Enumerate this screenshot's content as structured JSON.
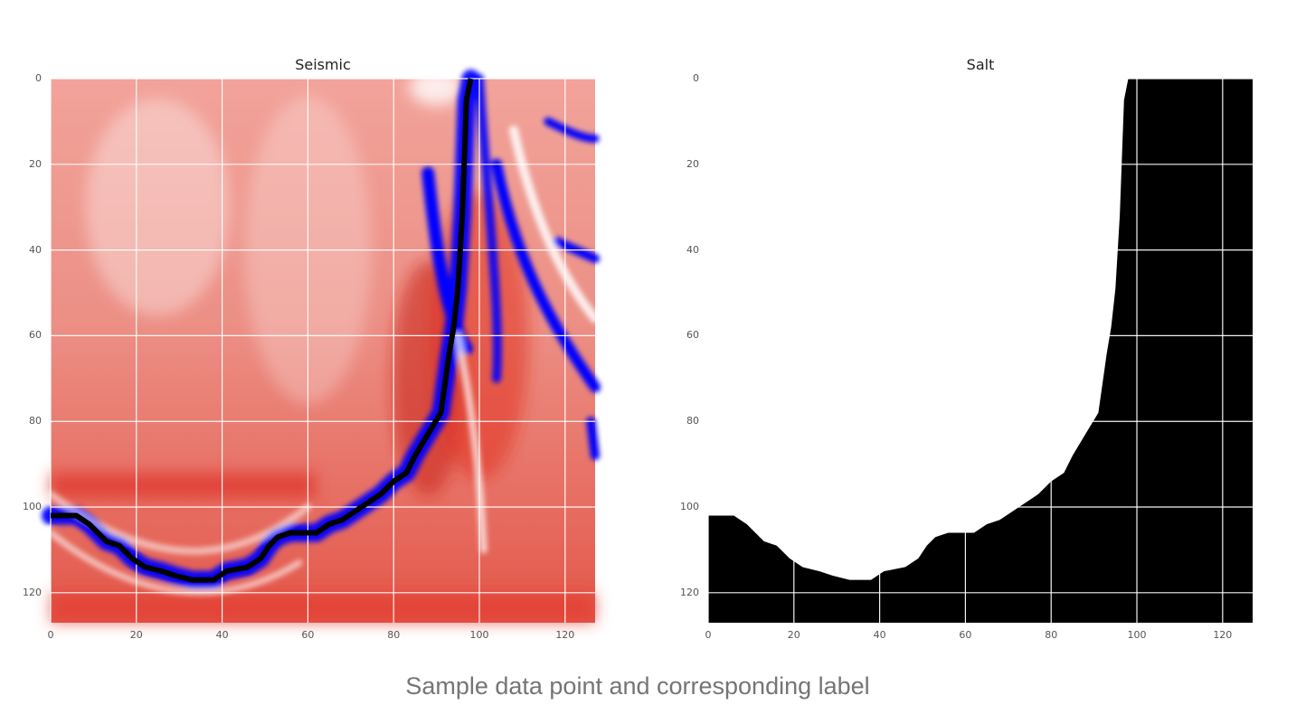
{
  "caption": "Sample data point and corresponding label",
  "chart_data": [
    {
      "type": "heatmap",
      "title": "Seismic",
      "colormap": [
        "#0000ff",
        "#ffffff",
        "#ee0000"
      ],
      "xlim": [
        0,
        127
      ],
      "ylim": [
        127,
        0
      ],
      "x_ticks": [
        "0",
        "20",
        "40",
        "60",
        "80",
        "100",
        "120"
      ],
      "y_ticks": [
        "0",
        "20",
        "40",
        "60",
        "80",
        "100",
        "120"
      ],
      "grid": true,
      "salt_boundary_color": "#000000",
      "salt_boundary": [
        [
          0,
          102
        ],
        [
          6,
          102
        ],
        [
          9,
          104
        ],
        [
          13,
          108
        ],
        [
          16,
          109
        ],
        [
          19,
          112
        ],
        [
          22,
          114
        ],
        [
          26,
          115
        ],
        [
          29,
          116
        ],
        [
          33,
          117
        ],
        [
          38,
          117
        ],
        [
          41,
          115
        ],
        [
          46,
          114
        ],
        [
          49,
          112
        ],
        [
          51,
          109
        ],
        [
          53,
          107
        ],
        [
          56,
          106
        ],
        [
          62,
          106
        ],
        [
          65,
          104
        ],
        [
          68,
          103
        ],
        [
          71,
          101
        ],
        [
          74,
          99
        ],
        [
          77,
          97
        ],
        [
          80,
          94
        ],
        [
          83,
          92
        ],
        [
          85,
          88
        ],
        [
          88,
          83
        ],
        [
          91,
          78
        ],
        [
          92,
          71
        ],
        [
          93,
          64
        ],
        [
          94,
          58
        ],
        [
          95,
          49
        ],
        [
          96,
          32
        ],
        [
          97,
          5
        ],
        [
          98,
          0
        ]
      ]
    },
    {
      "type": "heatmap",
      "title": "Salt",
      "colormap": [
        "#000000",
        "#ffffff"
      ],
      "xlim": [
        0,
        127
      ],
      "ylim": [
        127,
        0
      ],
      "x_ticks": [
        "0",
        "20",
        "40",
        "60",
        "80",
        "100",
        "120"
      ],
      "y_ticks": [
        "0",
        "20",
        "40",
        "60",
        "80",
        "100",
        "120"
      ],
      "grid": true,
      "salt_color": "#ffffff",
      "background_color": "#000000",
      "salt_boundary": [
        [
          0,
          102
        ],
        [
          6,
          102
        ],
        [
          9,
          104
        ],
        [
          13,
          108
        ],
        [
          16,
          109
        ],
        [
          19,
          112
        ],
        [
          22,
          114
        ],
        [
          26,
          115
        ],
        [
          29,
          116
        ],
        [
          33,
          117
        ],
        [
          38,
          117
        ],
        [
          41,
          115
        ],
        [
          46,
          114
        ],
        [
          49,
          112
        ],
        [
          51,
          109
        ],
        [
          53,
          107
        ],
        [
          56,
          106
        ],
        [
          62,
          106
        ],
        [
          65,
          104
        ],
        [
          68,
          103
        ],
        [
          71,
          101
        ],
        [
          74,
          99
        ],
        [
          77,
          97
        ],
        [
          80,
          94
        ],
        [
          83,
          92
        ],
        [
          85,
          88
        ],
        [
          88,
          83
        ],
        [
          91,
          78
        ],
        [
          92,
          71
        ],
        [
          93,
          64
        ],
        [
          94,
          58
        ],
        [
          95,
          49
        ],
        [
          96,
          32
        ],
        [
          97,
          5
        ],
        [
          98,
          0
        ]
      ]
    }
  ]
}
